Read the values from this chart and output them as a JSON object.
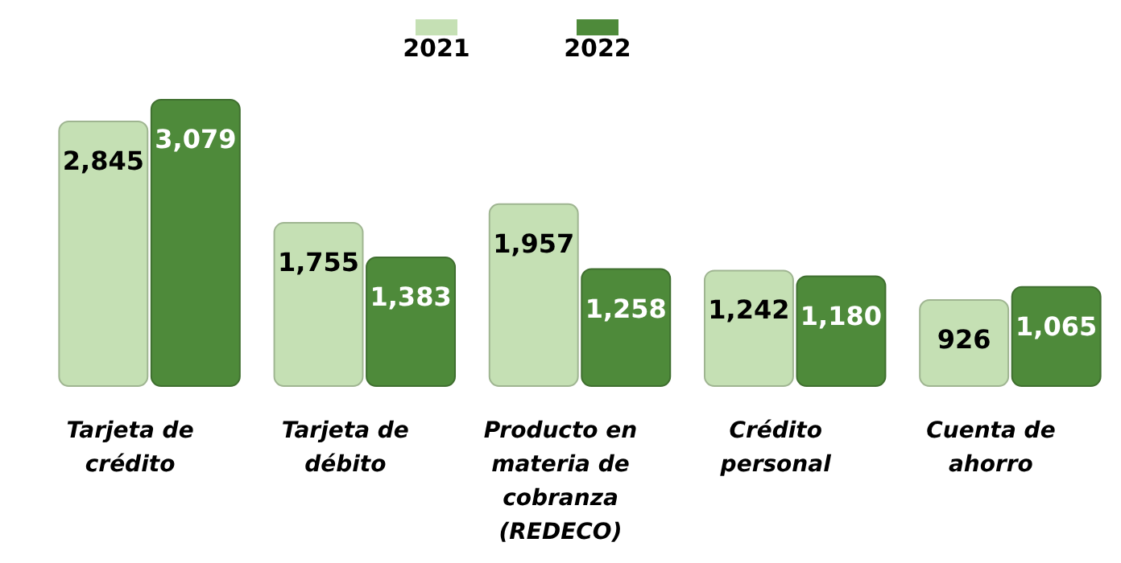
{
  "chart_data": {
    "type": "bar",
    "categories": [
      "Tarjeta de crédito",
      "Tarjeta de débito",
      "Producto en materia de cobranza (REDECO)",
      "Crédito personal",
      "Cuenta de ahorro"
    ],
    "series": [
      {
        "name": "2021",
        "color": "#c5e0b4",
        "values": [
          2845,
          1755,
          1957,
          1242,
          926
        ],
        "value_labels": [
          "2,845",
          "1,755",
          "1,957",
          "1,242",
          "926"
        ]
      },
      {
        "name": "2022",
        "color": "#4e8a3a",
        "values": [
          3079,
          1383,
          1258,
          1180,
          1065
        ],
        "value_labels": [
          "3,079",
          "1,383",
          "1,258",
          "1,180",
          "1,065"
        ]
      }
    ],
    "legend": "top"
  }
}
